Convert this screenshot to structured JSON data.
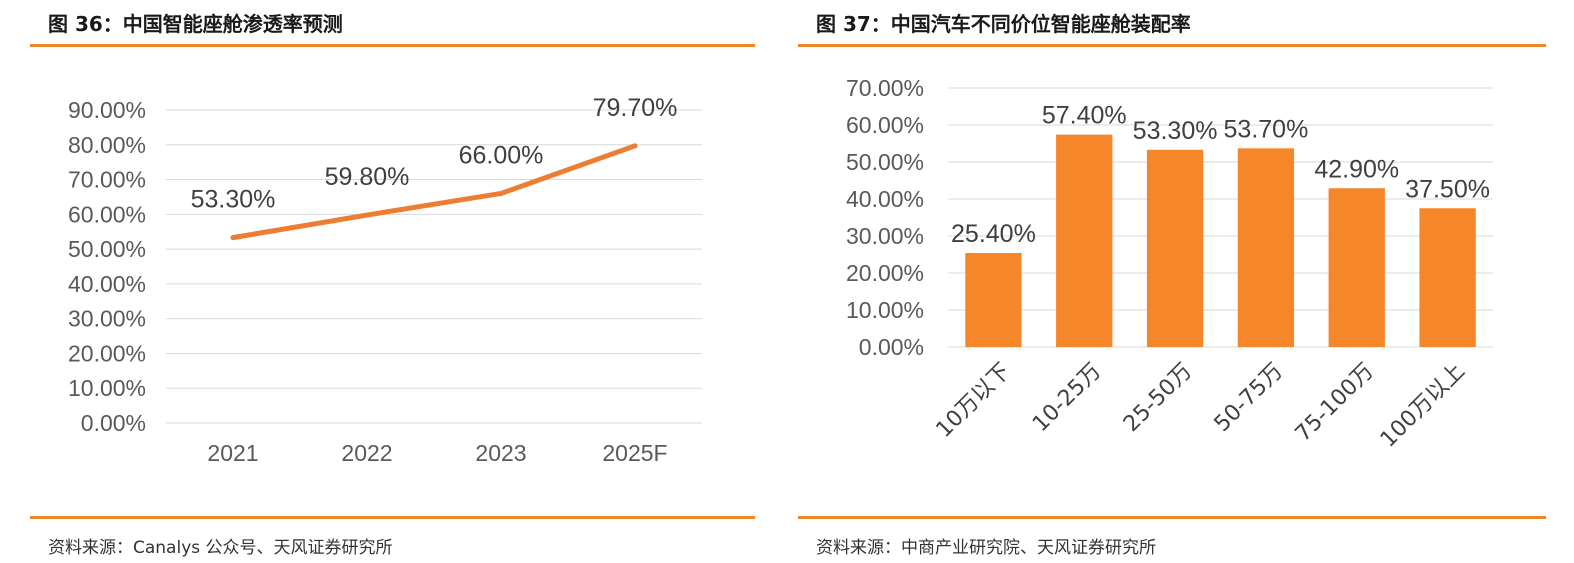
{
  "figures": [
    {
      "title": "图 36：中国智能座舱渗透率预测",
      "source": "资料来源：Canalys 公众号、天风证券研究所"
    },
    {
      "title": "图 37：中国汽车不同价位智能座舱装配率",
      "source": "资料来源：中商产业研究院、天风证券研究所"
    }
  ],
  "colors": {
    "accent": "#f0852a",
    "series": "#ed7d31",
    "bar": "#f5862a",
    "grid": "#d9d9d9"
  },
  "chart_data": [
    {
      "type": "line",
      "categories": [
        "2021",
        "2022",
        "2023",
        "2025F"
      ],
      "values": [
        53.3,
        59.8,
        66.0,
        79.7
      ],
      "data_labels": [
        "53.30%",
        "59.80%",
        "66.00%",
        "79.70%"
      ],
      "yticks": [
        "0.00%",
        "10.00%",
        "20.00%",
        "30.00%",
        "40.00%",
        "50.00%",
        "60.00%",
        "70.00%",
        "80.00%",
        "90.00%"
      ],
      "ylim": [
        0,
        90
      ],
      "grid": true,
      "legend": "none"
    },
    {
      "type": "bar",
      "categories": [
        "10万以下",
        "10-25万",
        "25-50万",
        "50-75万",
        "75-100万",
        "100万以上"
      ],
      "values": [
        25.4,
        57.4,
        53.3,
        53.7,
        42.9,
        37.5
      ],
      "data_labels": [
        "25.40%",
        "57.40%",
        "53.30%",
        "53.70%",
        "42.90%",
        "37.50%"
      ],
      "yticks": [
        "0.00%",
        "10.00%",
        "20.00%",
        "30.00%",
        "40.00%",
        "50.00%",
        "60.00%",
        "70.00%"
      ],
      "ylim": [
        0,
        70
      ],
      "grid": true,
      "legend": "none"
    }
  ]
}
